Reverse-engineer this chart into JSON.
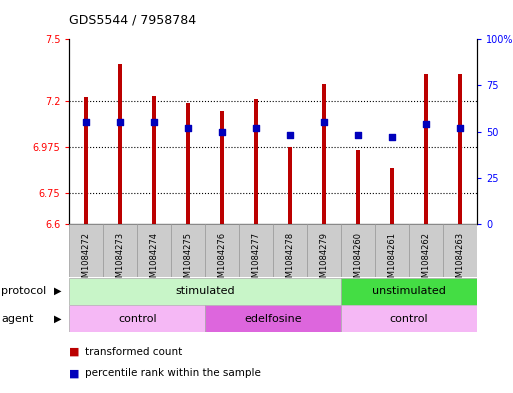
{
  "title": "GDS5544 / 7958784",
  "samples": [
    "GSM1084272",
    "GSM1084273",
    "GSM1084274",
    "GSM1084275",
    "GSM1084276",
    "GSM1084277",
    "GSM1084278",
    "GSM1084279",
    "GSM1084260",
    "GSM1084261",
    "GSM1084262",
    "GSM1084263"
  ],
  "bar_values": [
    7.22,
    7.38,
    7.225,
    7.19,
    7.15,
    7.21,
    6.975,
    7.28,
    6.96,
    6.875,
    7.33,
    7.33
  ],
  "bar_bottom": 6.6,
  "percentile_values": [
    55,
    55,
    55,
    52,
    50,
    52,
    48,
    55,
    48,
    47,
    54,
    52
  ],
  "ylim_left": [
    6.6,
    7.5
  ],
  "ylim_right": [
    0,
    100
  ],
  "yticks_left": [
    6.6,
    6.75,
    6.975,
    7.2,
    7.5
  ],
  "yticks_right": [
    0,
    25,
    50,
    75,
    100
  ],
  "ytick_labels_left": [
    "6.6",
    "6.75",
    "6.975",
    "7.2",
    "7.5"
  ],
  "ytick_labels_right": [
    "0",
    "25",
    "50",
    "75",
    "100%"
  ],
  "hlines": [
    6.75,
    6.975,
    7.2
  ],
  "bar_color": "#bb0000",
  "dot_color": "#0000bb",
  "bar_width": 0.12,
  "protocol_row_color_stimulated": "#c8f5c8",
  "protocol_row_color_unstimulated": "#44dd44",
  "agent_row_color_control": "#f5b8f5",
  "agent_row_color_edelfosine": "#dd66dd",
  "bg_color": "#ffffff",
  "legend_items": [
    {
      "label": "transformed count",
      "color": "#bb0000"
    },
    {
      "label": "percentile rank within the sample",
      "color": "#0000bb"
    }
  ]
}
